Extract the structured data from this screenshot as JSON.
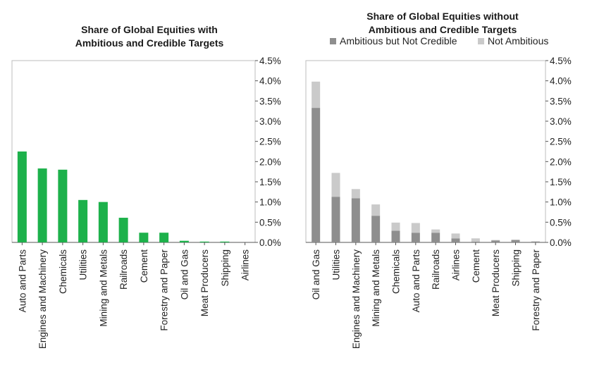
{
  "chart_data": [
    {
      "type": "bar",
      "title_lines": [
        "Share of Global Equities with",
        "Ambitious and Credible Targets"
      ],
      "categories": [
        "Auto and Parts",
        "Engines and Machinery",
        "Chemicals",
        "Utilities",
        "Mining and Metals",
        "Railroads",
        "Cement",
        "Forestry and Paper",
        "Oil and Gas",
        "Meat Producers",
        "Shipping",
        "Airlines"
      ],
      "series": [
        {
          "name": "Ambitious and Credible",
          "color": "#1db14b",
          "values": [
            2.25,
            1.83,
            1.8,
            1.05,
            1.0,
            0.61,
            0.24,
            0.24,
            0.04,
            0.02,
            0.02,
            0.0
          ]
        }
      ],
      "yticks": [
        "0.0%",
        "0.5%",
        "1.0%",
        "1.5%",
        "2.0%",
        "2.5%",
        "3.0%",
        "3.5%",
        "4.0%",
        "4.5%"
      ],
      "ylim": [
        0,
        4.5
      ],
      "legend": false
    },
    {
      "type": "bar",
      "stacked": true,
      "title_lines": [
        "Share of Global Equities without",
        "Ambitious and Credible Targets"
      ],
      "categories": [
        "Oil and Gas",
        "Utilities",
        "Engines and Machinery",
        "Mining and Metals",
        "Chemicals",
        "Auto and Parts",
        "Railroads",
        "Airlines",
        "Cement",
        "Meat Producers",
        "Shipping",
        "Forestry and Paper"
      ],
      "series": [
        {
          "name": "Ambitious but Not Credible",
          "color": "#8e8e8e",
          "values": [
            3.33,
            1.13,
            1.09,
            0.66,
            0.29,
            0.24,
            0.24,
            0.1,
            0.02,
            0.05,
            0.06,
            0.02
          ]
        },
        {
          "name": "Not Ambitious",
          "color": "#cacaca",
          "values": [
            0.65,
            0.59,
            0.23,
            0.28,
            0.2,
            0.24,
            0.08,
            0.12,
            0.08,
            0.01,
            0.01,
            0.01
          ]
        }
      ],
      "yticks": [
        "0.0%",
        "0.5%",
        "1.0%",
        "1.5%",
        "2.0%",
        "2.5%",
        "3.0%",
        "3.5%",
        "4.0%",
        "4.5%"
      ],
      "ylim": [
        0,
        4.5
      ],
      "legend": true
    }
  ]
}
